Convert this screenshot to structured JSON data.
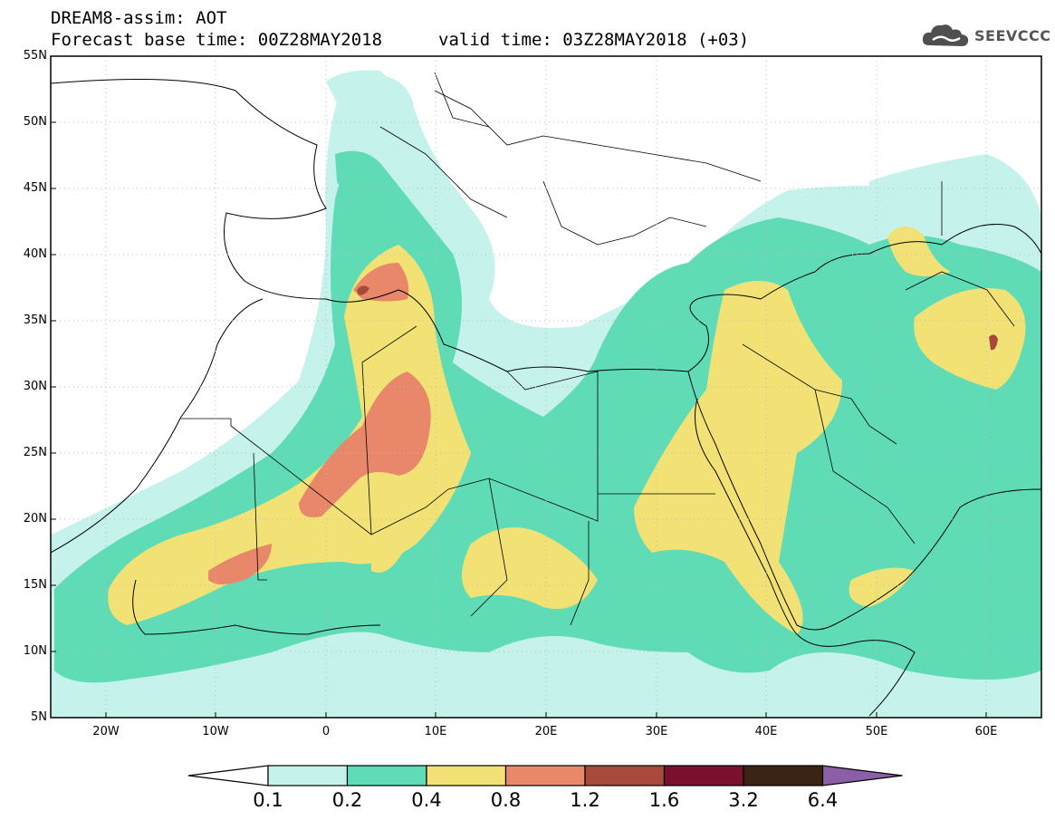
{
  "title": {
    "line1": "DREAM8-assim: AOT",
    "base_time": "Forecast base time: 00Z28MAY2018",
    "valid_time": "valid time: 03Z28MAY2018 (+03)"
  },
  "logo": {
    "text": "SEEVCCC",
    "icon": "cloud-icon"
  },
  "map": {
    "variable": "AOT",
    "lat_range": [
      5,
      55
    ],
    "lon_range": [
      -25,
      65
    ],
    "lat_labels": [
      "55N",
      "50N",
      "45N",
      "40N",
      "35N",
      "30N",
      "25N",
      "20N",
      "15N",
      "10N",
      "5N"
    ],
    "lon_labels": [
      "20W",
      "10W",
      "0",
      "10E",
      "20E",
      "30E",
      "40E",
      "50E",
      "60E"
    ],
    "gridlines": "dotted"
  },
  "legend": {
    "values": [
      "0.1",
      "0.2",
      "0.4",
      "0.8",
      "1.2",
      "1.6",
      "3.2",
      "6.4"
    ],
    "colors": [
      "#c6f2ec",
      "#5fdcb6",
      "#f2e276",
      "#e8876a",
      "#a84a3b",
      "#7a0f2e",
      "#3a2416",
      "#8a5fa8"
    ]
  }
}
